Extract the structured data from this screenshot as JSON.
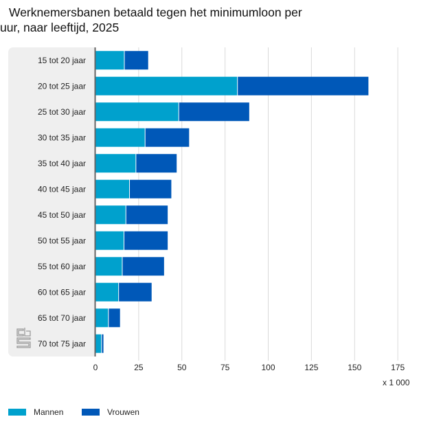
{
  "title_lines": [
    "Werknemersbanen betaald tegen het minimumloon per",
    "uur, naar leeftijd, 2025"
  ],
  "unit_label": "x 1 000",
  "logo_text": "cbs",
  "colors": {
    "mannen": "#00a1cd",
    "vrouwen": "#0058b8",
    "grid": "#d9d9d9",
    "axis": "#666666",
    "panel": "#efefef"
  },
  "chart_data": {
    "type": "bar",
    "orientation": "horizontal",
    "stacked": true,
    "title": "Werknemersbanen betaald tegen het minimumloon per uur, naar leeftijd, 2025",
    "xlabel": "x 1 000",
    "ylabel": "",
    "xlim": [
      0,
      185
    ],
    "xticks": [
      0,
      25,
      50,
      75,
      100,
      125,
      150,
      175
    ],
    "xtick_labels": [
      "0",
      "25",
      "50",
      "75",
      "100",
      "125",
      "150",
      "175"
    ],
    "grid": true,
    "legend_position": "bottom-left",
    "categories": [
      "15 tot 20 jaar",
      "20 tot 25 jaar",
      "25 tot 30 jaar",
      "30 tot 35 jaar",
      "35 tot 40 jaar",
      "40 tot 45 jaar",
      "45 tot 50 jaar",
      "50 tot 55 jaar",
      "55 tot 60 jaar",
      "60 tot 65 jaar",
      "65 tot 70 jaar",
      "70 tot 75 jaar"
    ],
    "series": [
      {
        "name": "Mannen",
        "values": [
          16.5,
          82,
          48,
          28.5,
          23.2,
          19.5,
          17.4,
          16.3,
          15.3,
          13.2,
          7.3,
          3.3
        ]
      },
      {
        "name": "Vrouwen",
        "values": [
          14,
          76,
          41,
          25.7,
          23.8,
          24.4,
          24.4,
          25.5,
          24.4,
          19.3,
          6.9,
          1.3
        ]
      }
    ]
  }
}
